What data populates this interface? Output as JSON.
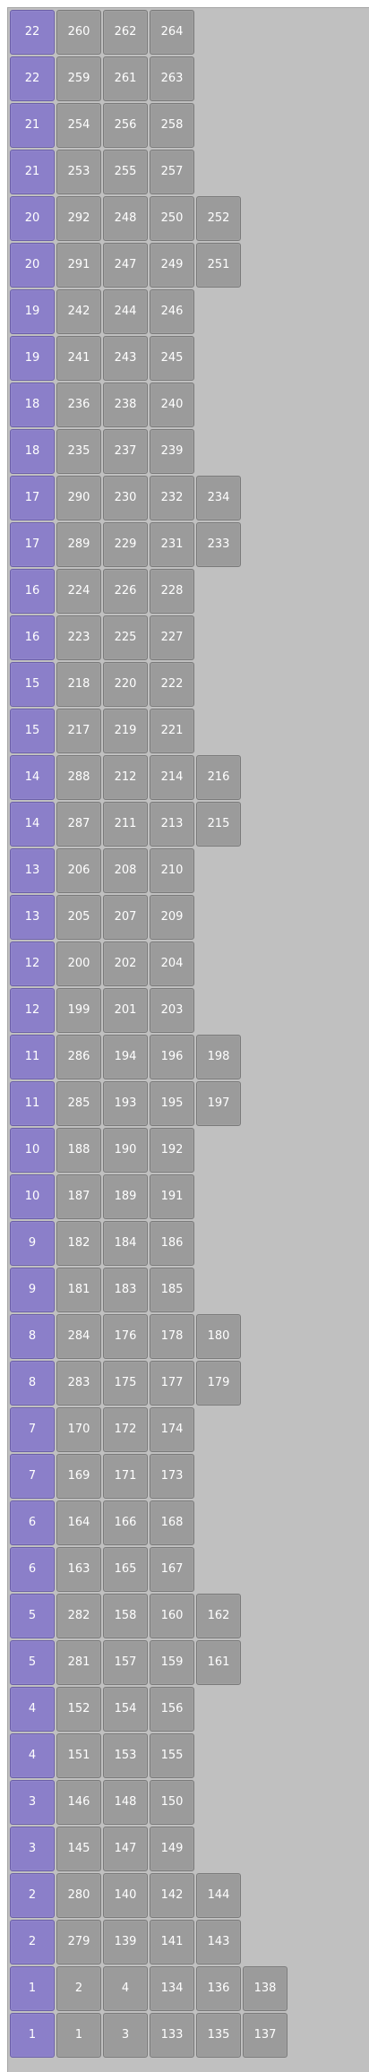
{
  "colors": {
    "background": "#c0c0c0",
    "group_cell": "#8b7fc9",
    "number_cell": "#9b9b9b",
    "text": "#ffffff"
  },
  "rows": [
    {
      "group": "22",
      "items": [
        "260",
        "262",
        "264"
      ]
    },
    {
      "group": "22",
      "items": [
        "259",
        "261",
        "263"
      ]
    },
    {
      "group": "21",
      "items": [
        "254",
        "256",
        "258"
      ]
    },
    {
      "group": "21",
      "items": [
        "253",
        "255",
        "257"
      ]
    },
    {
      "group": "20",
      "items": [
        "292",
        "248",
        "250",
        "252"
      ]
    },
    {
      "group": "20",
      "items": [
        "291",
        "247",
        "249",
        "251"
      ]
    },
    {
      "group": "19",
      "items": [
        "242",
        "244",
        "246"
      ]
    },
    {
      "group": "19",
      "items": [
        "241",
        "243",
        "245"
      ]
    },
    {
      "group": "18",
      "items": [
        "236",
        "238",
        "240"
      ]
    },
    {
      "group": "18",
      "items": [
        "235",
        "237",
        "239"
      ]
    },
    {
      "group": "17",
      "items": [
        "290",
        "230",
        "232",
        "234"
      ]
    },
    {
      "group": "17",
      "items": [
        "289",
        "229",
        "231",
        "233"
      ]
    },
    {
      "group": "16",
      "items": [
        "224",
        "226",
        "228"
      ]
    },
    {
      "group": "16",
      "items": [
        "223",
        "225",
        "227"
      ]
    },
    {
      "group": "15",
      "items": [
        "218",
        "220",
        "222"
      ]
    },
    {
      "group": "15",
      "items": [
        "217",
        "219",
        "221"
      ]
    },
    {
      "group": "14",
      "items": [
        "288",
        "212",
        "214",
        "216"
      ]
    },
    {
      "group": "14",
      "items": [
        "287",
        "211",
        "213",
        "215"
      ]
    },
    {
      "group": "13",
      "items": [
        "206",
        "208",
        "210"
      ]
    },
    {
      "group": "13",
      "items": [
        "205",
        "207",
        "209"
      ]
    },
    {
      "group": "12",
      "items": [
        "200",
        "202",
        "204"
      ]
    },
    {
      "group": "12",
      "items": [
        "199",
        "201",
        "203"
      ]
    },
    {
      "group": "11",
      "items": [
        "286",
        "194",
        "196",
        "198"
      ]
    },
    {
      "group": "11",
      "items": [
        "285",
        "193",
        "195",
        "197"
      ]
    },
    {
      "group": "10",
      "items": [
        "188",
        "190",
        "192"
      ]
    },
    {
      "group": "10",
      "items": [
        "187",
        "189",
        "191"
      ]
    },
    {
      "group": "9",
      "items": [
        "182",
        "184",
        "186"
      ]
    },
    {
      "group": "9",
      "items": [
        "181",
        "183",
        "185"
      ]
    },
    {
      "group": "8",
      "items": [
        "284",
        "176",
        "178",
        "180"
      ]
    },
    {
      "group": "8",
      "items": [
        "283",
        "175",
        "177",
        "179"
      ]
    },
    {
      "group": "7",
      "items": [
        "170",
        "172",
        "174"
      ]
    },
    {
      "group": "7",
      "items": [
        "169",
        "171",
        "173"
      ]
    },
    {
      "group": "6",
      "items": [
        "164",
        "166",
        "168"
      ]
    },
    {
      "group": "6",
      "items": [
        "163",
        "165",
        "167"
      ]
    },
    {
      "group": "5",
      "items": [
        "282",
        "158",
        "160",
        "162"
      ]
    },
    {
      "group": "5",
      "items": [
        "281",
        "157",
        "159",
        "161"
      ]
    },
    {
      "group": "4",
      "items": [
        "152",
        "154",
        "156"
      ]
    },
    {
      "group": "4",
      "items": [
        "151",
        "153",
        "155"
      ]
    },
    {
      "group": "3",
      "items": [
        "146",
        "148",
        "150"
      ]
    },
    {
      "group": "3",
      "items": [
        "145",
        "147",
        "149"
      ]
    },
    {
      "group": "2",
      "items": [
        "280",
        "140",
        "142",
        "144"
      ]
    },
    {
      "group": "2",
      "items": [
        "279",
        "139",
        "141",
        "143"
      ]
    },
    {
      "group": "1",
      "items": [
        "2",
        "4",
        "134",
        "136",
        "138"
      ]
    },
    {
      "group": "1",
      "items": [
        "1",
        "3",
        "133",
        "135",
        "137"
      ]
    }
  ]
}
